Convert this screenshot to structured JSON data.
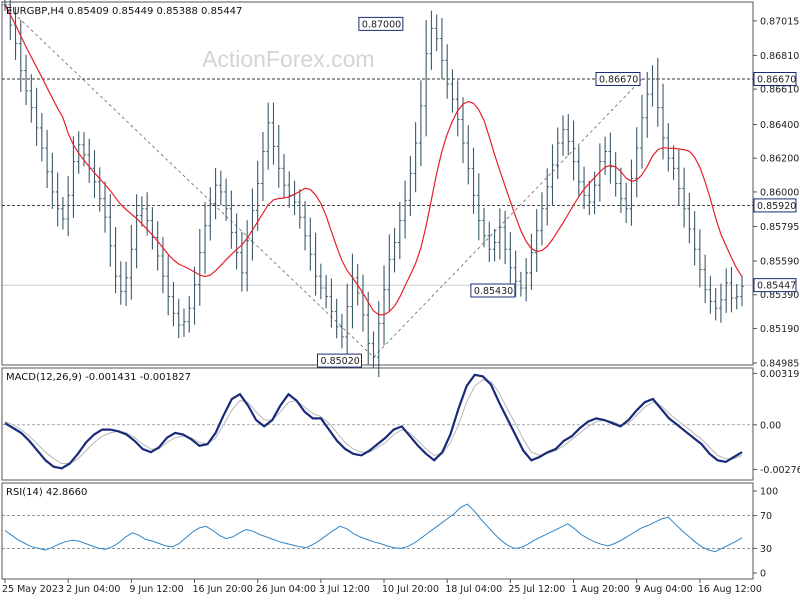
{
  "watermark": "ActionForex.com",
  "chart_data": [
    {
      "type": "line",
      "title": "EURGBP,H4  0.85409 0.85449 0.85388 0.85447",
      "price_render": "OHLC bars (H4), approximate",
      "ylim": [
        0.84985,
        0.87115
      ],
      "y_ticks": [
        "0.87015",
        "0.86810",
        "0.86610",
        "0.86400",
        "0.86200",
        "0.86000",
        "0.85795",
        "0.85590",
        "0.85390",
        "0.85190",
        "0.84985"
      ],
      "x_tick_labels": [
        "25 May 2023",
        "2 Jun 04:00",
        "9 Jun 12:00",
        "16 Jun 20:00",
        "26 Jun 04:00",
        "3 Jul 12:00",
        "10 Jul 20:00",
        "18 Jul 04:00",
        "25 Jul 12:00",
        "1 Aug 20:00",
        "9 Aug 04:00",
        "16 Aug 12:00"
      ],
      "x_tick_index": [
        0,
        12,
        24,
        36,
        48,
        60,
        72,
        84,
        96,
        108,
        120,
        132
      ],
      "close_series": [
        0.8711,
        0.8699,
        0.8688,
        0.8672,
        0.866,
        0.865,
        0.8638,
        0.8626,
        0.8612,
        0.86,
        0.859,
        0.8584,
        0.8598,
        0.8618,
        0.8628,
        0.8622,
        0.8614,
        0.8606,
        0.8596,
        0.8585,
        0.8568,
        0.855,
        0.8541,
        0.8549,
        0.8566,
        0.8586,
        0.859,
        0.8583,
        0.8573,
        0.8562,
        0.855,
        0.8538,
        0.8528,
        0.8521,
        0.8523,
        0.8531,
        0.8545,
        0.8564,
        0.858,
        0.8593,
        0.8604,
        0.86,
        0.859,
        0.8576,
        0.8564,
        0.8552,
        0.8571,
        0.8589,
        0.8605,
        0.8624,
        0.8641,
        0.8627,
        0.8614,
        0.8604,
        0.8598,
        0.8594,
        0.8585,
        0.8574,
        0.8563,
        0.855,
        0.8543,
        0.8538,
        0.8529,
        0.852,
        0.8514,
        0.8532,
        0.8549,
        0.854,
        0.8527,
        0.851,
        0.8502,
        0.8522,
        0.8542,
        0.856,
        0.857,
        0.8583,
        0.8595,
        0.8611,
        0.8629,
        0.8651,
        0.8682,
        0.8697,
        0.8691,
        0.8678,
        0.8664,
        0.8655,
        0.8643,
        0.8629,
        0.8614,
        0.8598,
        0.8583,
        0.8574,
        0.8566,
        0.857,
        0.8579,
        0.8566,
        0.8555,
        0.8547,
        0.8543,
        0.8552,
        0.8564,
        0.8577,
        0.859,
        0.8603,
        0.8616,
        0.8629,
        0.8637,
        0.863,
        0.8618,
        0.8606,
        0.8598,
        0.8594,
        0.8604,
        0.8618,
        0.8624,
        0.8615,
        0.8605,
        0.8596,
        0.859,
        0.8608,
        0.8626,
        0.8644,
        0.8658,
        0.8667,
        0.865,
        0.8632,
        0.862,
        0.8614,
        0.8602,
        0.859,
        0.8578,
        0.8566,
        0.8554,
        0.8542,
        0.8535,
        0.8531,
        0.8536,
        0.8546,
        0.8537,
        0.8538,
        0.8544
      ],
      "moving_average_color": "#e8202a",
      "bar_color": "#3b5a68",
      "h_levels": [
        {
          "label": "0.86670",
          "value": 0.8667,
          "style": "dashed"
        },
        {
          "label": "0.85920",
          "value": 0.8592,
          "style": "dashed"
        },
        {
          "label": "0.85447",
          "value": 0.85447,
          "style": "solid"
        }
      ],
      "annotations": [
        {
          "label": "0.87000",
          "value": 0.87,
          "index": 79
        },
        {
          "label": "0.86670",
          "value": 0.8667,
          "index": 121
        },
        {
          "label": "0.85430",
          "value": 0.8543,
          "index": 98
        },
        {
          "label": "0.85020",
          "value": 0.8502,
          "index": 70
        }
      ],
      "trend_lines": [
        {
          "from": [
            0,
            0.8711
          ],
          "to": [
            70,
            0.8502
          ]
        },
        {
          "from": [
            70,
            0.8502
          ],
          "to": [
            121,
            0.8667
          ]
        }
      ]
    },
    {
      "type": "line",
      "title": "MACD(12,26,9) -0.001431 -0.001827",
      "y_ticks": [
        "0.00319",
        "0.00",
        "-0.002769"
      ],
      "ylim": [
        -0.0033,
        0.0034
      ],
      "zero_line": true,
      "macd_color": "#1a2a7a",
      "signal_color": "#b8b8b8",
      "series": [
        {
          "values": [
            0.0001,
            -0.0002,
            -0.0005,
            -0.001,
            -0.0016,
            -0.0022,
            -0.0026,
            -0.0027,
            -0.0024,
            -0.0018,
            -0.0011,
            -0.0006,
            -0.0003,
            -0.0003,
            -0.0004,
            -0.0006,
            -0.001,
            -0.0015,
            -0.0017,
            -0.0014,
            -0.0008,
            -0.0005,
            -0.0006,
            -0.0009,
            -0.0013,
            -0.0012,
            -0.0005,
            0.0006,
            0.0016,
            0.0019,
            0.0012,
            0.0003,
            -0.0001,
            0.0003,
            0.0012,
            0.0019,
            0.0015,
            0.0008,
            0.0004,
            0.0004,
            -0.0003,
            -0.001,
            -0.0015,
            -0.0018,
            -0.0019,
            -0.0016,
            -0.0012,
            -0.0008,
            -0.0003,
            -0.0001,
            -0.0007,
            -0.0013,
            -0.0018,
            -0.0022,
            -0.0017,
            -0.0006,
            0.001,
            0.0024,
            0.0031,
            0.003,
            0.0025,
            0.0014,
            0.0004,
            -0.0006,
            -0.0016,
            -0.0022,
            -0.002,
            -0.0017,
            -0.0015,
            -0.001,
            -0.0007,
            -0.0002,
            0.0002,
            0.0004,
            0.0003,
            0.0001,
            -0.0001,
            0.0003,
            0.0009,
            0.0014,
            0.0016,
            0.001,
            0.0004,
            0.0,
            -0.0004,
            -0.0008,
            -0.0012,
            -0.0018,
            -0.0022,
            -0.0023,
            -0.002,
            -0.0017
          ],
          "name": "MACD"
        },
        {
          "values": [
            0.0002,
            0.0,
            -0.0003,
            -0.0007,
            -0.0012,
            -0.0017,
            -0.0021,
            -0.0024,
            -0.0024,
            -0.0021,
            -0.0016,
            -0.0011,
            -0.0007,
            -0.0005,
            -0.0004,
            -0.0005,
            -0.0008,
            -0.0012,
            -0.0015,
            -0.0015,
            -0.0011,
            -0.0008,
            -0.0007,
            -0.0008,
            -0.0011,
            -0.0012,
            -0.0008,
            0.0,
            0.0009,
            0.0015,
            0.0014,
            0.0008,
            0.0003,
            0.0003,
            0.0008,
            0.0014,
            0.0015,
            0.0011,
            0.0007,
            0.0005,
            0.0001,
            -0.0005,
            -0.0011,
            -0.0015,
            -0.0017,
            -0.0017,
            -0.0014,
            -0.0011,
            -0.0006,
            -0.0003,
            -0.0005,
            -0.001,
            -0.0015,
            -0.0019,
            -0.0018,
            -0.0011,
            0.0,
            0.0014,
            0.0024,
            0.0028,
            0.0027,
            0.002,
            0.001,
            0.0001,
            -0.0009,
            -0.0017,
            -0.0019,
            -0.0018,
            -0.0016,
            -0.0013,
            -0.0009,
            -0.0005,
            -0.0001,
            0.0002,
            0.0003,
            0.0002,
            0.0,
            0.0001,
            0.0006,
            0.0011,
            0.0014,
            0.0012,
            0.0007,
            0.0003,
            -0.0001,
            -0.0005,
            -0.0009,
            -0.0014,
            -0.0019,
            -0.0021,
            -0.0021,
            -0.0019
          ],
          "name": "Signal"
        }
      ]
    },
    {
      "type": "line",
      "title": "RSI(14) 42.8660",
      "y_ticks": [
        "100",
        "70",
        "30",
        "0"
      ],
      "ylim": [
        0,
        100
      ],
      "levels": [
        70,
        30
      ],
      "line_color": "#2f86c9",
      "values": [
        52,
        46,
        40,
        36,
        32,
        30,
        28,
        31,
        35,
        38,
        40,
        39,
        36,
        33,
        30,
        29,
        32,
        37,
        44,
        49,
        46,
        41,
        39,
        36,
        33,
        32,
        36,
        43,
        50,
        55,
        57,
        52,
        46,
        42,
        44,
        49,
        53,
        51,
        47,
        44,
        41,
        38,
        36,
        34,
        32,
        31,
        35,
        40,
        46,
        52,
        57,
        54,
        48,
        44,
        41,
        38,
        36,
        33,
        31,
        30,
        32,
        36,
        42,
        48,
        54,
        60,
        66,
        72,
        80,
        84,
        76,
        66,
        57,
        48,
        40,
        34,
        30,
        31,
        35,
        40,
        44,
        48,
        52,
        56,
        60,
        54,
        47,
        42,
        38,
        35,
        33,
        36,
        40,
        45,
        50,
        55,
        58,
        62,
        66,
        68,
        60,
        52,
        45,
        38,
        32,
        28,
        26,
        30,
        34,
        38,
        43
      ]
    }
  ]
}
